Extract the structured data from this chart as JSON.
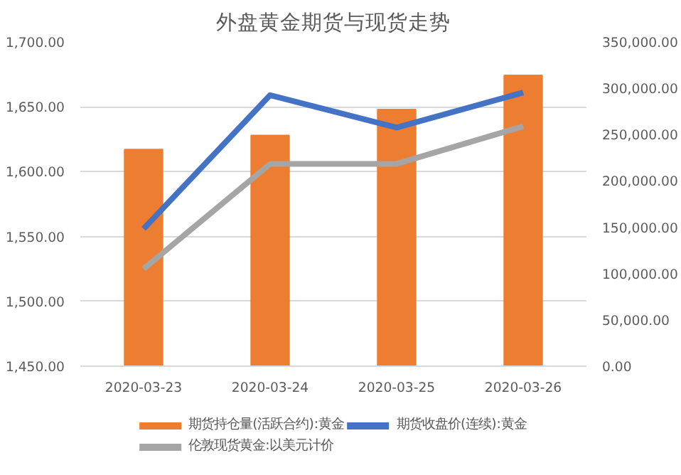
{
  "chart_data": {
    "type": "bar",
    "title": "外盘黄金期货与现货走势",
    "categories": [
      "2020-03-23",
      "2020-03-24",
      "2020-03-25",
      "2020-03-26"
    ],
    "series": [
      {
        "name": "期货持仓量(活跃合约):黄金",
        "type": "bar",
        "axis": "y2",
        "color": "#ed7d31",
        "values": [
          234000,
          249000,
          277000,
          314000
        ]
      },
      {
        "name": "期货收盘价(连续):黄金",
        "type": "line",
        "color": "#4472c4",
        "values": [
          1556,
          1659,
          1634,
          1661
        ]
      },
      {
        "name": "伦敦现货黄金:以美元计价",
        "type": "line",
        "color": "#a5a5a5",
        "values": [
          1525,
          1606,
          1606,
          1635
        ]
      }
    ],
    "ylim": [
      1450,
      1700
    ],
    "yticks": [
      {
        "value": 1450,
        "label": "1,450.00"
      },
      {
        "value": 1500,
        "label": "1,500.00"
      },
      {
        "value": 1550,
        "label": "1,550.00"
      },
      {
        "value": 1600,
        "label": "1,600.00"
      },
      {
        "value": 1650,
        "label": "1,650.00"
      },
      {
        "value": 1700,
        "label": "1,700.00"
      }
    ],
    "y2lim": [
      0,
      350000
    ],
    "y2ticks": [
      {
        "value": 0,
        "label": "0.00"
      },
      {
        "value": 50000,
        "label": "50,000.00"
      },
      {
        "value": 100000,
        "label": "100,000.00"
      },
      {
        "value": 150000,
        "label": "150,000.00"
      },
      {
        "value": 200000,
        "label": "200,000.00"
      },
      {
        "value": 250000,
        "label": "250,000.00"
      },
      {
        "value": 300000,
        "label": "300,000.00"
      },
      {
        "value": 350000,
        "label": "350,000.00"
      }
    ],
    "grid": "y",
    "legend": "bottom"
  }
}
